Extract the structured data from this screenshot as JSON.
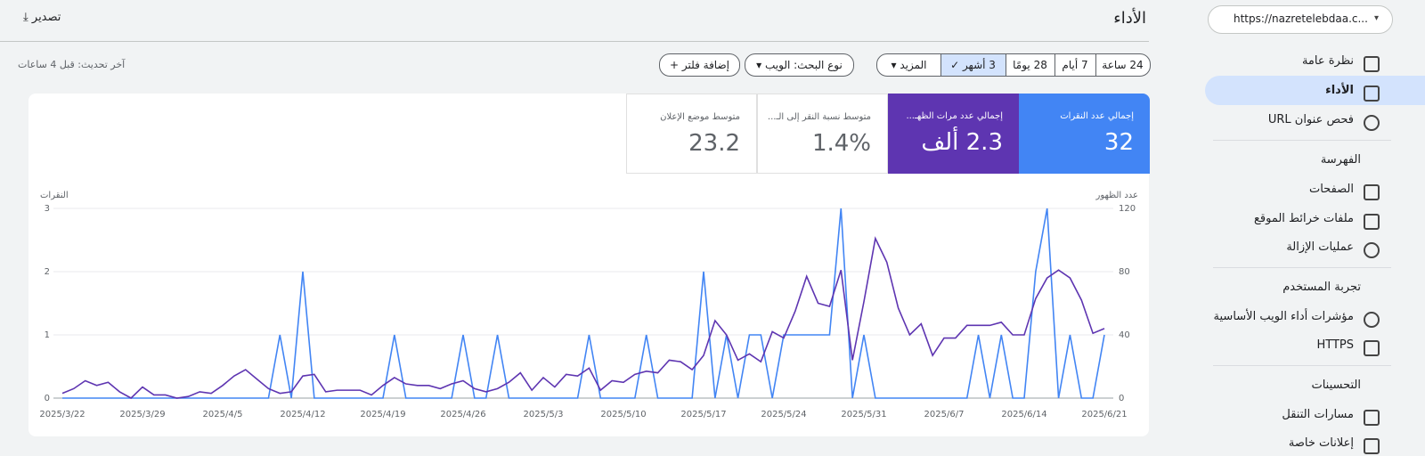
{
  "sidebar": {
    "property": "https://nazretelebdaa.c...",
    "items": [
      "نظرة عامة",
      "الأداء",
      "فحص عنوان URL"
    ],
    "sections": [
      {
        "title": "الفهرسة",
        "items": [
          "الصفحات",
          "ملفات خرائط الموقع",
          "عمليات الإزالة"
        ]
      },
      {
        "title": "تجربة المستخدم",
        "items": [
          "مؤشرات أداء الويب الأساسية",
          "HTTPS"
        ]
      },
      {
        "title": "التحسينات",
        "items": [
          "مسارات التنقل",
          "إعلانات خاصة"
        ]
      }
    ]
  },
  "header": {
    "title": "الأداء",
    "export": "تصدير"
  },
  "filters": {
    "ranges": [
      "24 ساعة",
      "7 أيام",
      "28 يومًا",
      "3 أشهر",
      "المزيد"
    ],
    "search_type": "نوع البحث: الويب",
    "add_filter": "إضافة فلتر",
    "last_updated": "آخر تحديث: قبل 4 ساعات"
  },
  "metrics": [
    {
      "label": "إجمالي عدد النقرات",
      "value": "32"
    },
    {
      "label": "إجمالي عدد مرات الظهـ...",
      "value": "2.3 ألف"
    },
    {
      "label": "متوسط نسبة النقر إلى الـ...",
      "value": "1.4%"
    },
    {
      "label": "متوسط موضع الإعلان",
      "value": "23.2"
    }
  ],
  "chart_data": {
    "type": "line",
    "categories": [
      "2025/3/22",
      null,
      null,
      null,
      null,
      null,
      null,
      "2025/3/29",
      null,
      null,
      null,
      null,
      null,
      null,
      "2025/4/5",
      null,
      null,
      null,
      null,
      null,
      null,
      "2025/4/12",
      null,
      null,
      null,
      null,
      null,
      null,
      "2025/4/19",
      null,
      null,
      null,
      null,
      null,
      null,
      "2025/4/26",
      null,
      null,
      null,
      null,
      null,
      null,
      "2025/5/3",
      null,
      null,
      null,
      null,
      null,
      null,
      "2025/5/10",
      null,
      null,
      null,
      null,
      null,
      null,
      "2025/5/17",
      null,
      null,
      null,
      null,
      null,
      null,
      "2025/5/24",
      null,
      null,
      null,
      null,
      null,
      null,
      "2025/5/31",
      null,
      null,
      null,
      null,
      null,
      null,
      "2025/6/7",
      null,
      null,
      null,
      null,
      null,
      null,
      "2025/6/14",
      null,
      null,
      null,
      null,
      null,
      null,
      "2025/6/21"
    ],
    "y_label": "النقرات",
    "y2_label": "عدد الظهور",
    "ylim": [
      0,
      3
    ],
    "yticks": [
      0,
      1,
      2,
      3
    ],
    "y2lim": [
      0,
      120
    ],
    "y2ticks": [
      0,
      40,
      80,
      120
    ],
    "grid": true,
    "series": [
      {
        "color": "#4285f4",
        "values": [
          0,
          0,
          0,
          0,
          0,
          0,
          0,
          0,
          0,
          0,
          0,
          0,
          0,
          0,
          0,
          0,
          0,
          0,
          0,
          1,
          0,
          2,
          0,
          0,
          0,
          0,
          0,
          0,
          0,
          1,
          0,
          0,
          0,
          0,
          0,
          1,
          0,
          0,
          1,
          0,
          0,
          0,
          0,
          0,
          0,
          0,
          1,
          0,
          0,
          0,
          0,
          1,
          0,
          0,
          0,
          0,
          2,
          0,
          1,
          0,
          1,
          1,
          0,
          1,
          1,
          1,
          1,
          1,
          3,
          0,
          1,
          0,
          0,
          0,
          0,
          0,
          0,
          0,
          0,
          0,
          1,
          0,
          1,
          0,
          0,
          2,
          3,
          0,
          1,
          0,
          0,
          1
        ]
      },
      {
        "color": "#5e35b1",
        "axis": "y2",
        "values": [
          3,
          6,
          11,
          8,
          10,
          4,
          0,
          7,
          2,
          2,
          0,
          1,
          4,
          3,
          8,
          14,
          18,
          12,
          6,
          3,
          4,
          14,
          15,
          4,
          5,
          5,
          5,
          2,
          8,
          13,
          9,
          8,
          8,
          6,
          9,
          11,
          6,
          4,
          6,
          10,
          16,
          5,
          13,
          7,
          15,
          14,
          19,
          5,
          11,
          10,
          15,
          17,
          16,
          24,
          23,
          18,
          27,
          49,
          40,
          24,
          28,
          23,
          42,
          38,
          55,
          77,
          60,
          58,
          81,
          24,
          61,
          101,
          86,
          57,
          40,
          47,
          27,
          38,
          38,
          46,
          46,
          46,
          48,
          40,
          40,
          63,
          76,
          81,
          76,
          62,
          41,
          44
        ]
      }
    ]
  }
}
